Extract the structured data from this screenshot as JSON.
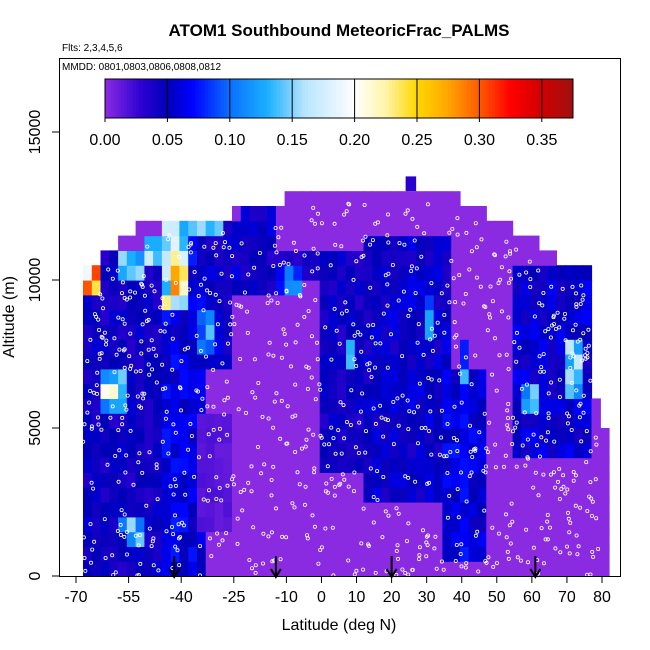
{
  "chart_data": {
    "type": "heatmap",
    "title": "ATOM1 Southbound MeteoricFrac_PALMS",
    "subtitle_flights": "Flts: 2,3,4,5,6",
    "subtitle_dates": "MMDD: 0801,0803,0806,0808,0812",
    "xlabel": "Latitude (deg N)",
    "ylabel": "Altitude (m)",
    "xlim": [
      -70,
      80
    ],
    "ylim": [
      0,
      17500
    ],
    "x_ticks": [
      -70,
      -55,
      -40,
      -25,
      -10,
      0,
      10,
      20,
      30,
      40,
      50,
      60,
      70,
      80
    ],
    "x_tick_labels": [
      "-70",
      "-55",
      "-40",
      "-25",
      "-10",
      "0",
      "10",
      "20",
      "30",
      "40",
      "50",
      "60",
      "70",
      "80"
    ],
    "y_ticks": [
      0,
      5000,
      10000,
      15000
    ],
    "y_tick_labels": [
      "0",
      "5000",
      "10000",
      "15000"
    ],
    "colorbar": {
      "min": 0.0,
      "max": 0.375,
      "tick_values": [
        0.0,
        0.05,
        0.1,
        0.15,
        0.2,
        0.25,
        0.3,
        0.35
      ],
      "tick_labels": [
        "0.00",
        "0.05",
        "0.10",
        "0.15",
        "0.20",
        "0.25",
        "0.30",
        "0.35"
      ],
      "stops": [
        {
          "v": 0.0,
          "color": "#8a2be2"
        },
        {
          "v": 0.03,
          "color": "#2a00d0"
        },
        {
          "v": 0.05,
          "color": "#0000b8"
        },
        {
          "v": 0.07,
          "color": "#0000ff"
        },
        {
          "v": 0.1,
          "color": "#0a70ff"
        },
        {
          "v": 0.13,
          "color": "#1ab0ff"
        },
        {
          "v": 0.16,
          "color": "#b8e4ff"
        },
        {
          "v": 0.2,
          "color": "#ffffff"
        },
        {
          "v": 0.225,
          "color": "#fff4a8"
        },
        {
          "v": 0.25,
          "color": "#ffd700"
        },
        {
          "v": 0.275,
          "color": "#ffa500"
        },
        {
          "v": 0.3,
          "color": "#ff5a00"
        },
        {
          "v": 0.325,
          "color": "#ff0000"
        },
        {
          "v": 0.35,
          "color": "#d00000"
        },
        {
          "v": 0.375,
          "color": "#a01010"
        }
      ]
    },
    "grid": {
      "lat_step_deg": 2.5,
      "alt_step_m": 500,
      "background_value": 0.0,
      "alt_top_by_lat": [
        {
          "lat": -68,
          "alt": 10000
        },
        {
          "lat": -60,
          "alt": 10800
        },
        {
          "lat": -52,
          "alt": 11500
        },
        {
          "lat": -45,
          "alt": 11800
        },
        {
          "lat": -30,
          "alt": 11800
        },
        {
          "lat": -20,
          "alt": 12200
        },
        {
          "lat": 0,
          "alt": 12800
        },
        {
          "lat": 25,
          "alt": 13000
        },
        {
          "lat": 40,
          "alt": 12500
        },
        {
          "lat": 55,
          "alt": 11500
        },
        {
          "lat": 65,
          "alt": 10700
        },
        {
          "lat": 76,
          "alt": 10000
        },
        {
          "lat": 78,
          "alt": 6000
        },
        {
          "lat": 80,
          "alt": 5000
        }
      ],
      "features": [
        {
          "lat": [
            -68,
            -45
          ],
          "alt": [
            0,
            11000
          ],
          "value": 0.045
        },
        {
          "lat": [
            -45,
            -33
          ],
          "alt": [
            0,
            12000
          ],
          "value": 0.06
        },
        {
          "lat": [
            -33,
            -22
          ],
          "alt": [
            7000,
            12000
          ],
          "value": 0.05
        },
        {
          "lat": [
            -22,
            -12
          ],
          "alt": [
            9500,
            12300
          ],
          "value": 0.05
        },
        {
          "lat": [
            -15,
            2
          ],
          "alt": [
            10000,
            11000
          ],
          "value": 0.04
        },
        {
          "lat": [
            0,
            12
          ],
          "alt": [
            3500,
            11000
          ],
          "value": 0.045
        },
        {
          "lat": [
            12,
            38
          ],
          "alt": [
            2500,
            11500
          ],
          "value": 0.05
        },
        {
          "lat": [
            35,
            48
          ],
          "alt": [
            500,
            7000
          ],
          "value": 0.06
        },
        {
          "lat": [
            55,
            78
          ],
          "alt": [
            4000,
            10500
          ],
          "value": 0.055
        },
        {
          "lat": [
            -64,
            -56
          ],
          "alt": [
            5500,
            7000
          ],
          "value": 0.12
        },
        {
          "lat": [
            -62,
            -58
          ],
          "alt": [
            6000,
            6500
          ],
          "value": 0.22
        },
        {
          "lat": [
            -68,
            -62
          ],
          "alt": [
            9500,
            10500
          ],
          "value": 0.25
        },
        {
          "lat": [
            -58,
            -50
          ],
          "alt": [
            10000,
            11000
          ],
          "value": 0.13
        },
        {
          "lat": [
            -50,
            -45
          ],
          "alt": [
            10500,
            11500
          ],
          "value": 0.14
        },
        {
          "lat": [
            -45,
            -38
          ],
          "alt": [
            9000,
            11500
          ],
          "value": 0.18
        },
        {
          "lat": [
            -42,
            -38
          ],
          "alt": [
            9500,
            10500
          ],
          "value": 0.24
        },
        {
          "lat": [
            -35,
            -30
          ],
          "alt": [
            7500,
            8800
          ],
          "value": 0.12
        },
        {
          "lat": [
            -45,
            -38
          ],
          "alt": [
            11500,
            12000
          ],
          "value": 0.14
        },
        {
          "lat": [
            -38,
            -28
          ],
          "alt": [
            11500,
            12000
          ],
          "value": 0.12
        },
        {
          "lat": [
            -12,
            -5
          ],
          "alt": [
            9500,
            10500
          ],
          "value": 0.09
        },
        {
          "lat": [
            6,
            10
          ],
          "alt": [
            7000,
            8000
          ],
          "value": 0.12
        },
        {
          "lat": [
            30,
            33
          ],
          "alt": [
            8000,
            9500
          ],
          "value": 0.1
        },
        {
          "lat": [
            40,
            43
          ],
          "alt": [
            6500,
            8000
          ],
          "value": 0.11
        },
        {
          "lat": [
            58,
            62
          ],
          "alt": [
            5500,
            6500
          ],
          "value": 0.14
        },
        {
          "lat": [
            70,
            75
          ],
          "alt": [
            6000,
            8000
          ],
          "value": 0.13
        },
        {
          "lat": [
            76,
            80
          ],
          "alt": [
            9500,
            10000
          ],
          "value": 0.24
        },
        {
          "lat": [
            -58,
            -52
          ],
          "alt": [
            1500,
            2000
          ],
          "value": 0.11
        },
        {
          "lat": [
            -55,
            -50
          ],
          "alt": [
            1200,
            2000
          ],
          "value": 0.13
        },
        {
          "lat": [
            -48,
            -44
          ],
          "alt": [
            800,
            1200
          ],
          "value": 0.03
        },
        {
          "lat": [
            -35,
            -25
          ],
          "alt": [
            1500,
            5500
          ],
          "value": 0.015
        },
        {
          "lat": [
            -25,
            0
          ],
          "alt": [
            0,
            9500
          ],
          "value": 0.0
        },
        {
          "lat": [
            48,
            55
          ],
          "alt": [
            1000,
            5500
          ],
          "value": 0.0
        },
        {
          "lat": [
            62,
            78
          ],
          "alt": [
            0,
            4000
          ],
          "value": 0.0
        }
      ]
    },
    "annotations": {
      "arrow_latitudes": [
        -42,
        -13,
        20,
        61
      ],
      "sample_point_count": 900
    }
  }
}
